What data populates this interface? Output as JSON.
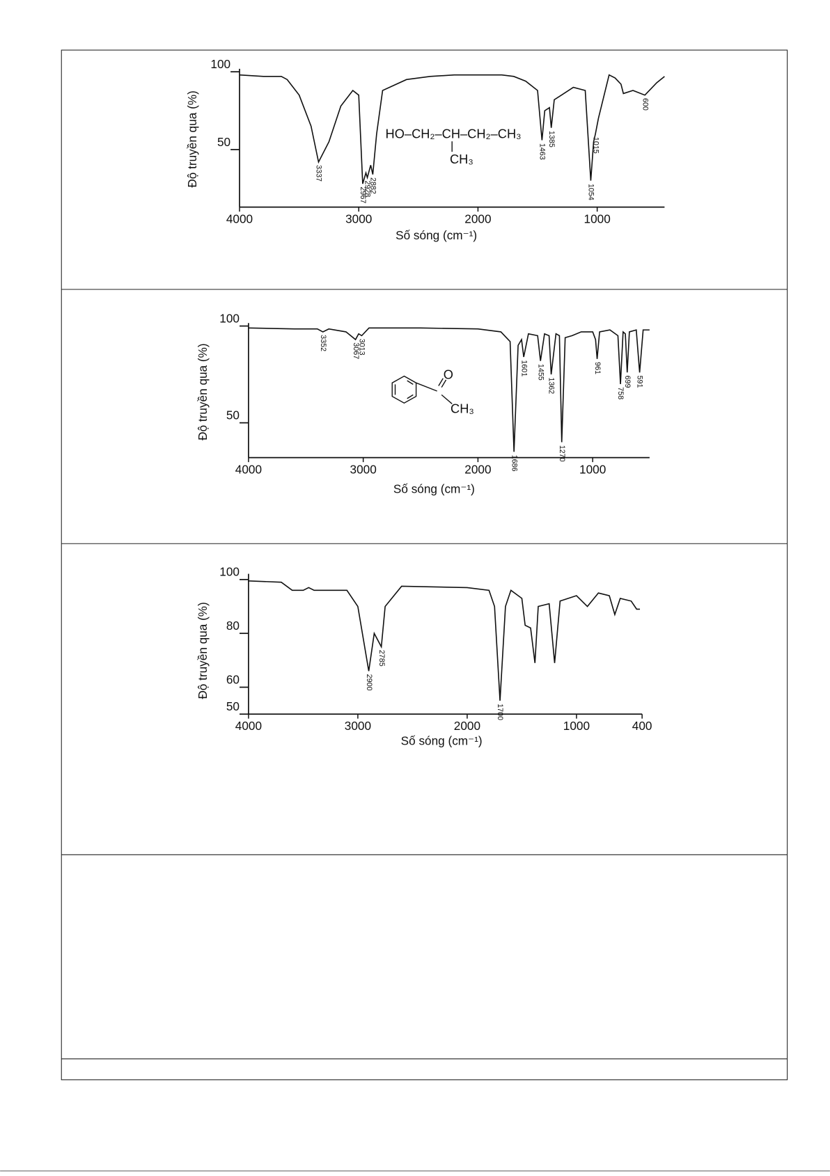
{
  "chart_data": [
    {
      "type": "line",
      "ylabel": "Độ truyền qua (%)",
      "xlabel": "Số sóng (cm⁻¹)",
      "color": "#111111",
      "xlim": [
        4000,
        435
      ],
      "ylim": [
        13,
        100
      ],
      "xticks": [
        4000,
        3000,
        2000,
        1000
      ],
      "yticks": [
        100,
        50
      ],
      "x": [
        4000,
        3800,
        3650,
        3600,
        3500,
        3400,
        3337,
        3250,
        3150,
        3050,
        3000,
        2967,
        2940,
        2928,
        2900,
        2882,
        2850,
        2800,
        2600,
        2400,
        2200,
        2000,
        1800,
        1700,
        1600,
        1500,
        1463,
        1440,
        1400,
        1385,
        1360,
        1300,
        1200,
        1100,
        1054,
        1030,
        1015,
        990,
        900,
        850,
        800,
        780,
        700,
        600,
        500,
        435
      ],
      "values": [
        98,
        97,
        97,
        95,
        85,
        65,
        42,
        55,
        78,
        88,
        85,
        28,
        35,
        32,
        40,
        34,
        60,
        88,
        95,
        97,
        98,
        98,
        98,
        97,
        94,
        88,
        56,
        75,
        77,
        64,
        82,
        85,
        90,
        88,
        30,
        55,
        60,
        70,
        98,
        96,
        92,
        86,
        88,
        85,
        93,
        97
      ],
      "peaks": [
        3337,
        2967,
        2928,
        2882,
        1463,
        1385,
        1054,
        1015,
        600
      ],
      "annotations": [
        "HO–CH₂–CH–CH₂–CH₃",
        "CH₃"
      ]
    },
    {
      "type": "line",
      "ylabel": "Độ truyền qua (%)",
      "xlabel": "Số sóng (cm⁻¹)",
      "color": "#111111",
      "xlim": [
        4000,
        504
      ],
      "ylim": [
        32,
        100
      ],
      "xticks": [
        4000,
        3000,
        2000,
        1000
      ],
      "yticks": [
        100,
        50
      ],
      "x": [
        4000,
        3600,
        3400,
        3352,
        3300,
        3150,
        3067,
        3040,
        3013,
        2950,
        2500,
        2000,
        1800,
        1720,
        1686,
        1650,
        1620,
        1601,
        1560,
        1480,
        1455,
        1420,
        1380,
        1362,
        1320,
        1290,
        1270,
        1240,
        1180,
        1100,
        1000,
        975,
        961,
        940,
        850,
        780,
        758,
        735,
        715,
        699,
        680,
        620,
        591,
        560,
        504
      ],
      "values": [
        99,
        98.5,
        98.5,
        97,
        98.5,
        97,
        93,
        96,
        95,
        99,
        99,
        98.5,
        97,
        92,
        35,
        90,
        93,
        84,
        96,
        95,
        82,
        96,
        95,
        75,
        96,
        95,
        40,
        94,
        95,
        97,
        97,
        93,
        83,
        97,
        98,
        95,
        70,
        97,
        96,
        76,
        97,
        98,
        76,
        98,
        98
      ],
      "peaks": [
        3352,
        3067,
        3013,
        1686,
        1601,
        1455,
        1362,
        1270,
        961,
        758,
        699,
        591
      ],
      "annotations": [
        "O",
        "CH₃"
      ]
    },
    {
      "type": "line",
      "ylabel": "Độ truyền qua (%)",
      "xlabel": "Số sóng (cm⁻¹)",
      "color": "#111111",
      "xlim": [
        4000,
        400
      ],
      "ylim": [
        50,
        101
      ],
      "xticks": [
        4000,
        3000,
        2000,
        1000,
        400
      ],
      "yticks": [
        100,
        80,
        60,
        50
      ],
      "x": [
        4000,
        3700,
        3600,
        3500,
        3450,
        3400,
        3100,
        3000,
        2900,
        2850,
        2785,
        2750,
        2600,
        2000,
        1800,
        1750,
        1700,
        1650,
        1600,
        1500,
        1470,
        1420,
        1380,
        1350,
        1250,
        1200,
        1150,
        1000,
        900,
        800,
        700,
        650,
        600,
        500,
        450,
        420
      ],
      "values": [
        99.5,
        99,
        96,
        96,
        97,
        96,
        96,
        90,
        66,
        80,
        75,
        90,
        97.5,
        97,
        96,
        90,
        55,
        90,
        96,
        93,
        83,
        82,
        69,
        90,
        91,
        69,
        92,
        94,
        90,
        95,
        94,
        87,
        93,
        92,
        89,
        89
      ],
      "peaks": [
        2900,
        2785,
        1700
      ],
      "annotations": []
    }
  ]
}
